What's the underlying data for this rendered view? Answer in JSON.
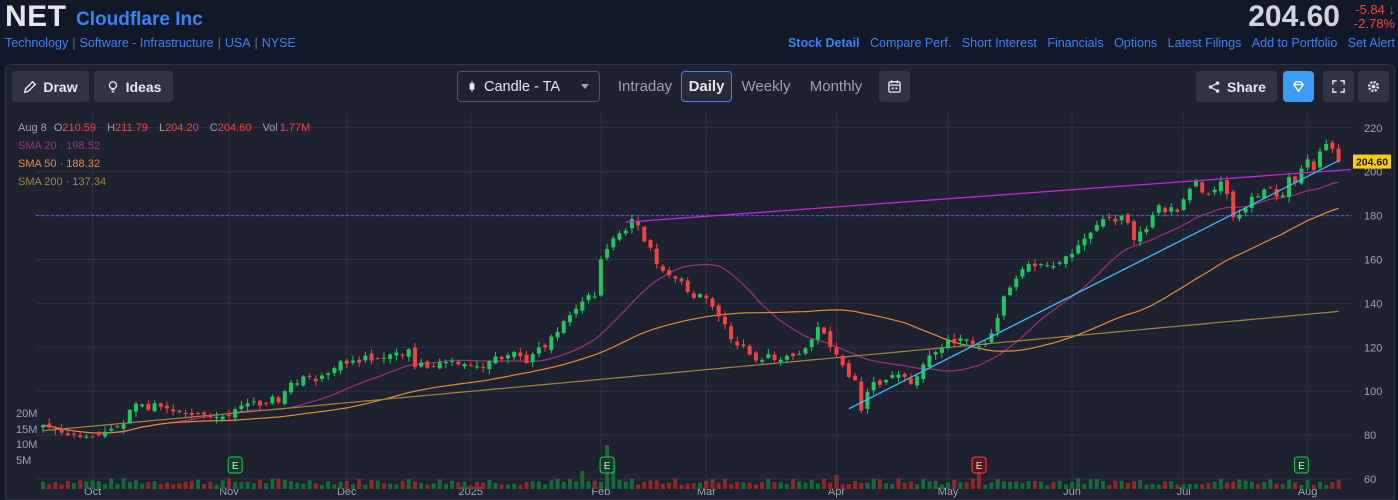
{
  "header": {
    "ticker": "NET",
    "company": "Cloudflare Inc",
    "breadcrumbs": [
      "Technology",
      "Software - Infrastructure",
      "USA",
      "NYSE"
    ],
    "price": "204.60",
    "change": "-5.84",
    "change_pct": "-2.78%",
    "nav": [
      "Stock Detail",
      "Compare Perf.",
      "Short Interest",
      "Financials",
      "Options",
      "Latest Filings",
      "Add to Portfolio",
      "Set Alert"
    ]
  },
  "toolbar": {
    "draw_label": "Draw",
    "ideas_label": "Ideas",
    "chart_type": "Candle - TA",
    "tabs": [
      "Intraday",
      "Daily",
      "Weekly",
      "Monthly"
    ],
    "active_tab": "Daily",
    "share_label": "Share"
  },
  "legend": {
    "date": "Aug 8",
    "open_label": "O",
    "open": "210.59",
    "high_label": "H",
    "high": "211.79",
    "low_label": "L",
    "low": "204.20",
    "close_label": "C",
    "close": "204.60",
    "vol_label": "Vol",
    "vol": "1.77M",
    "sma20": "SMA 20 · 198.52",
    "sma50": "SMA 50 · 188.32",
    "sma200": "SMA 200 · 137.34"
  },
  "colors": {
    "up": "#22c55e",
    "down": "#ef4444",
    "sma20": "#9d2f7d",
    "sma50": "#e8893a",
    "sma200": "#a0863a",
    "trend_top": "#c026d3",
    "trend_bottom": "#38bdf8",
    "hline": "#4f5bd5",
    "price_tag": "#facc15"
  },
  "chart_data": {
    "type": "candlestick",
    "price_ticks": [
      60,
      80,
      100,
      120,
      140,
      160,
      180,
      200,
      220
    ],
    "ylim": [
      60,
      224
    ],
    "volume_ticks": [
      "5M",
      "10M",
      "15M",
      "20M"
    ],
    "x_labels": [
      "Oct",
      "Nov",
      "Dec",
      "2025",
      "Feb",
      "Mar",
      "Apr",
      "May",
      "Jun",
      "Jul",
      "Aug"
    ],
    "x_label_index": [
      8,
      30,
      49,
      69,
      90,
      107,
      128,
      146,
      166,
      184,
      204
    ],
    "n_days": 212,
    "last_price": "204.60",
    "horizontal_line": 180,
    "earnings_markers": [
      {
        "label": "E",
        "index": 31,
        "type": "up"
      },
      {
        "label": "E",
        "index": 91,
        "type": "up"
      },
      {
        "label": "E",
        "index": 151,
        "type": "down"
      },
      {
        "label": "E",
        "index": 203,
        "type": "up"
      }
    ],
    "trendlines": [
      {
        "name": "resistance",
        "from": [
          94,
          177
        ],
        "to": [
          211,
          201
        ]
      },
      {
        "name": "support",
        "from": [
          130,
          92
        ],
        "to": [
          209,
          205
        ]
      }
    ],
    "closes": [
      84.5,
      83.5,
      82.4,
      81.1,
      80,
      80.2,
      79.1,
      79.3,
      79.3,
      80,
      81.5,
      82.9,
      84,
      85,
      91.5,
      94.3,
      94,
      91.5,
      94.5,
      92.9,
      92.2,
      90.7,
      90.5,
      89.9,
      89.1,
      89.9,
      89.4,
      88.2,
      88.3,
      88.4,
      88.6,
      91.7,
      93.5,
      94.5,
      95.4,
      93.5,
      94.6,
      97.5,
      95,
      100,
      103.9,
      103.6,
      106.7,
      106.7,
      104.5,
      107.1,
      108.2,
      110.5,
      113.6,
      112.5,
      113.9,
      113.1,
      116.2,
      114,
      114.8,
      115.2,
      116.8,
      117.6,
      116.6,
      119.1,
      111.1,
      113,
      110.7,
      111.1,
      113.2,
      113.3,
      113.8,
      112.2,
      112.4,
      111.5,
      111.3,
      110.8,
      113.7,
      115.8,
      114.6,
      116.4,
      117.8,
      115.9,
      112.9,
      116.9,
      120,
      119.9,
      124.9,
      127,
      131.9,
      134.6,
      137.6,
      140.8,
      143.8,
      143.1,
      160.1,
      164.8,
      169.6,
      171.9,
      173.2,
      178.5,
      175.6,
      168.2,
      165.4,
      157.9,
      154.8,
      152.9,
      151.3,
      150,
      145.2,
      142.5,
      144.2,
      142.4,
      138.5,
      134,
      130.5,
      123.7,
      120.8,
      120.6,
      116.7,
      114,
      114.1,
      116.8,
      114.2,
      114.3,
      116.1,
      116,
      116.9,
      119.6,
      123.5,
      129.2,
      126.3,
      120.2,
      116.7,
      111.8,
      106.5,
      105,
      91.2,
      99.6,
      104.2,
      102.9,
      105.1,
      107.3,
      107.5,
      106.5,
      103.3,
      106.8,
      112.2,
      116.3,
      117.8,
      119.6,
      123.6,
      121.8,
      124.1,
      123.6,
      121.6,
      120.6,
      121.5,
      126.4,
      133.4,
      143.2,
      147.2,
      151.3,
      155.5,
      157.9,
      156.9,
      157.9,
      157.4,
      157,
      158.7,
      161.5,
      162.6,
      166.5,
      169.5,
      172.2,
      175.7,
      178.4,
      179.2,
      177.3,
      179.9,
      176.7,
      168.9,
      172.7,
      173.8,
      180.3,
      184.7,
      181.6,
      183.8,
      181.7,
      187.4,
      192.2,
      196,
      190.5,
      189.7,
      191.8,
      195.5,
      189.8,
      179.3,
      180.4,
      183.3,
      188.6,
      188.7,
      191.9,
      192.8,
      188.6,
      189.2,
      197.5,
      194.9,
      201.4,
      205.6,
      200.8,
      209.2,
      212.6,
      210.4,
      204.6
    ]
  }
}
